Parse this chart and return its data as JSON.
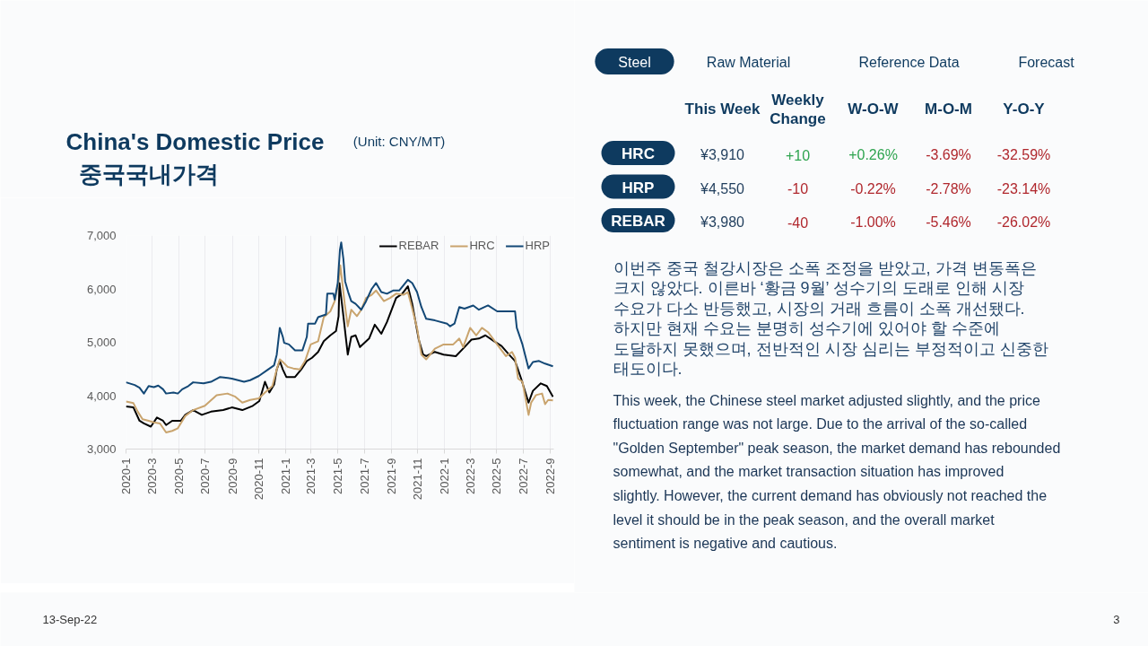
{
  "chart_data": [
    {
      "type": "line",
      "title": "China's Domestic Price",
      "subtitle": "(Unit: CNY/MT)",
      "annotations": [
        "중국국내가격"
      ],
      "xlim": [
        "2020-01-01",
        "2022-09-09"
      ],
      "xticks": [
        {
          "value": "2020-01",
          "label": "2020-1"
        },
        {
          "value": "2020-03",
          "label": "2020-3"
        },
        {
          "value": "2020-05",
          "label": "2020-5"
        },
        {
          "value": "2020-07",
          "label": "2020-7"
        },
        {
          "value": "2020-09",
          "label": "2020-9"
        },
        {
          "value": "2020-11",
          "label": "2020-11"
        },
        {
          "value": "2021-01",
          "label": "2021-1"
        },
        {
          "value": "2021-03",
          "label": "2021-3"
        },
        {
          "value": "2021-05",
          "label": "2021-5"
        },
        {
          "value": "2021-07",
          "label": "2021-7"
        },
        {
          "value": "2021-09",
          "label": "2021-9"
        },
        {
          "value": "2021-11",
          "label": "2021-11"
        },
        {
          "value": "2022-01",
          "label": "2022-1"
        },
        {
          "value": "2022-03",
          "label": "2022-3"
        },
        {
          "value": "2022-05",
          "label": "2022-5"
        },
        {
          "value": "2022-07",
          "label": "2022-7"
        },
        {
          "value": "2022-09",
          "label": "2022-9"
        }
      ],
      "ylim": [
        3000,
        7000
      ],
      "yticks": [
        {
          "value": 3000,
          "label": "3,000"
        },
        {
          "value": 4000,
          "label": "4,000"
        },
        {
          "value": 5000,
          "label": "5,000"
        },
        {
          "value": 6000,
          "label": "6,000"
        },
        {
          "value": 7000,
          "label": "7,000"
        }
      ],
      "grid": "x",
      "legend": "top right",
      "series": [
        {
          "name": "REBAR",
          "color": "#000000",
          "x": [
            "2020-01-01",
            "2020-01-18",
            "2020-02-01",
            "2020-02-11",
            "2020-02-27",
            "2020-03-12",
            "2020-03-26",
            "2020-04-02",
            "2020-04-16",
            "2020-05-06",
            "2020-05-16",
            "2020-06-03",
            "2020-06-23",
            "2020-07-14",
            "2020-08-11",
            "2020-08-31",
            "2020-09-24",
            "2020-10-18",
            "2020-11-02",
            "2020-11-15",
            "2020-11-25",
            "2020-12-06",
            "2020-12-12",
            "2020-12-19",
            "2020-12-26",
            "2021-01-03",
            "2021-01-23",
            "2021-02-06",
            "2021-02-19",
            "2021-03-03",
            "2021-03-17",
            "2021-03-30",
            "2021-04-14",
            "2021-04-27",
            "2021-05-03",
            "2021-05-05",
            "2021-05-14",
            "2021-05-21",
            "2021-05-24",
            "2021-06-01",
            "2021-06-11",
            "2021-06-21",
            "2021-07-12",
            "2021-07-25",
            "2021-08-09",
            "2021-08-22",
            "2021-09-12",
            "2021-09-26",
            "2021-10-09",
            "2021-10-19",
            "2021-11-03",
            "2021-11-13",
            "2021-11-20",
            "2021-12-10",
            "2021-12-30",
            "2022-01-27",
            "2022-02-16",
            "2022-03-04",
            "2022-03-21",
            "2022-04-05",
            "2022-04-25",
            "2022-05-12",
            "2022-05-29",
            "2022-06-12",
            "2022-06-26",
            "2022-07-13",
            "2022-07-23",
            "2022-08-10",
            "2022-08-24",
            "2022-09-07"
          ],
          "values": [
            3800,
            3780,
            3530,
            3480,
            3420,
            3590,
            3530,
            3450,
            3530,
            3530,
            3640,
            3730,
            3640,
            3700,
            3730,
            3780,
            3730,
            3810,
            3900,
            4260,
            4060,
            4210,
            4490,
            4650,
            4490,
            4350,
            4350,
            4490,
            4650,
            4710,
            4820,
            5020,
            5130,
            5210,
            5490,
            6110,
            5490,
            4990,
            4770,
            5100,
            5130,
            4910,
            5070,
            5330,
            5160,
            5380,
            5830,
            5910,
            6050,
            5720,
            5050,
            4770,
            4740,
            4820,
            4770,
            4740,
            4910,
            5050,
            5070,
            5130,
            5020,
            4930,
            4770,
            4650,
            4320,
            3870,
            4090,
            4230,
            4180,
            3980
          ]
        },
        {
          "name": "HRC",
          "color": "#c9a46e",
          "x": [
            "2020-01-01",
            "2020-01-18",
            "2020-01-28",
            "2020-02-08",
            "2020-02-22",
            "2020-03-05",
            "2020-03-19",
            "2020-04-02",
            "2020-04-16",
            "2020-04-29",
            "2020-05-16",
            "2020-06-03",
            "2020-06-30",
            "2020-07-27",
            "2020-08-21",
            "2020-09-08",
            "2020-09-24",
            "2020-10-12",
            "2020-11-01",
            "2020-11-15",
            "2020-12-02",
            "2020-12-12",
            "2020-12-19",
            "2020-12-26",
            "2021-01-06",
            "2021-01-19",
            "2021-02-03",
            "2021-02-15",
            "2021-02-28",
            "2021-03-17",
            "2021-03-30",
            "2021-04-14",
            "2021-04-24",
            "2021-05-04",
            "2021-05-07",
            "2021-05-17",
            "2021-05-24",
            "2021-06-01",
            "2021-06-14",
            "2021-06-24",
            "2021-07-05",
            "2021-07-18",
            "2021-07-28",
            "2021-08-15",
            "2021-08-29",
            "2021-09-12",
            "2021-09-29",
            "2021-10-09",
            "2021-10-19",
            "2021-10-30",
            "2021-11-09",
            "2021-11-20",
            "2021-12-10",
            "2021-12-30",
            "2022-01-21",
            "2022-02-04",
            "2022-02-13",
            "2022-03-01",
            "2022-03-15",
            "2022-03-28",
            "2022-04-11",
            "2022-05-02",
            "2022-05-22",
            "2022-06-05",
            "2022-06-12",
            "2022-06-19",
            "2022-06-29",
            "2022-07-13",
            "2022-07-19",
            "2022-07-30",
            "2022-08-13",
            "2022-08-20",
            "2022-08-27",
            "2022-09-07"
          ],
          "values": [
            3890,
            3860,
            3700,
            3560,
            3530,
            3500,
            3480,
            3310,
            3340,
            3390,
            3620,
            3730,
            3810,
            4010,
            4040,
            3980,
            3870,
            3920,
            3950,
            4060,
            4180,
            4490,
            4680,
            4630,
            4540,
            4510,
            4490,
            4650,
            4960,
            5020,
            5470,
            5580,
            5770,
            6190,
            6440,
            5720,
            5300,
            5610,
            5490,
            5610,
            5830,
            5890,
            5970,
            5770,
            5830,
            5910,
            5890,
            5940,
            5630,
            5270,
            4770,
            4680,
            4880,
            4960,
            4960,
            5070,
            4910,
            5270,
            5130,
            5270,
            5190,
            4960,
            4740,
            4820,
            4710,
            4320,
            4260,
            3640,
            3870,
            4010,
            4040,
            3840,
            3920,
            3910
          ]
        },
        {
          "name": "HRP",
          "color": "#134876",
          "x": [
            "2020-01-01",
            "2020-01-21",
            "2020-02-01",
            "2020-02-11",
            "2020-02-22",
            "2020-03-05",
            "2020-03-15",
            "2020-03-26",
            "2020-04-02",
            "2020-04-19",
            "2020-04-29",
            "2020-05-09",
            "2020-05-23",
            "2020-06-03",
            "2020-06-27",
            "2020-07-14",
            "2020-08-04",
            "2020-08-31",
            "2020-09-28",
            "2020-10-12",
            "2020-11-01",
            "2020-11-22",
            "2020-12-06",
            "2020-12-12",
            "2020-12-19",
            "2020-12-26",
            "2020-12-29",
            "2021-01-09",
            "2021-01-23",
            "2021-02-09",
            "2021-02-19",
            "2021-02-22",
            "2021-03-10",
            "2021-03-17",
            "2021-04-04",
            "2021-04-07",
            "2021-04-21",
            "2021-04-24",
            "2021-05-01",
            "2021-05-06",
            "2021-05-09",
            "2021-05-14",
            "2021-05-18",
            "2021-05-25",
            "2021-06-01",
            "2021-06-11",
            "2021-06-24",
            "2021-07-05",
            "2021-07-18",
            "2021-07-28",
            "2021-08-09",
            "2021-08-22",
            "2021-09-05",
            "2021-09-19",
            "2021-10-09",
            "2021-10-19",
            "2021-10-30",
            "2021-11-09",
            "2021-11-20",
            "2021-12-10",
            "2022-01-07",
            "2022-01-14",
            "2022-01-24",
            "2022-02-04",
            "2022-02-16",
            "2022-03-08",
            "2022-03-21",
            "2022-04-11",
            "2022-05-02",
            "2022-06-12",
            "2022-06-16",
            "2022-06-29",
            "2022-07-13",
            "2022-07-23",
            "2022-08-06",
            "2022-08-20",
            "2022-09-07"
          ],
          "values": [
            4250,
            4200,
            4150,
            4040,
            4180,
            4160,
            4190,
            4120,
            4040,
            4060,
            4040,
            4120,
            4180,
            4250,
            4230,
            4260,
            4350,
            4320,
            4260,
            4290,
            4370,
            4490,
            4570,
            4770,
            5270,
            5100,
            4990,
            4960,
            4850,
            4850,
            5100,
            5350,
            5350,
            5470,
            5520,
            5910,
            5910,
            5800,
            6110,
            6730,
            6870,
            6560,
            6140,
            5940,
            5770,
            5720,
            5610,
            5770,
            6000,
            6110,
            5940,
            5910,
            5970,
            5970,
            6170,
            6110,
            5940,
            5660,
            5440,
            5410,
            5350,
            5300,
            5350,
            5660,
            5630,
            5690,
            5610,
            5690,
            5580,
            5580,
            5270,
            4960,
            4510,
            4630,
            4650,
            4600,
            4550
          ]
        }
      ]
    },
    {
      "type": "other",
      "categories": [
        "Steel",
        "Raw Material",
        "Reference Data",
        "Forecast"
      ],
      "colors": [
        "#0e3a5f",
        null,
        null,
        null
      ]
    },
    {
      "type": "other",
      "categories": [
        "This Week",
        "Weekly Change",
        "W-O-W",
        "M-O-M",
        "Y-O-Y"
      ],
      "y_categories": [
        "HRC",
        "HRP",
        "REBAR"
      ],
      "cell_labels": [
        [
          "¥3,910",
          "+10",
          "+0.26%",
          "-3.69%",
          "-32.59%"
        ],
        [
          "¥4,550",
          "-10",
          "-0.22%",
          "-2.78%",
          "-23.14%"
        ],
        [
          "¥3,980",
          "-40",
          "-1.00%",
          "-5.46%",
          "-26.02%"
        ]
      ],
      "colors": [
        [
          "#1f3d5c",
          "#2ea44f",
          "#2ea44f",
          "#b0272d",
          "#b0272d"
        ],
        [
          "#1f3d5c",
          "#b0272d",
          "#b0272d",
          "#b0272d",
          "#b0272d"
        ],
        [
          "#1f3d5c",
          "#b0272d",
          "#b0272d",
          "#b0272d",
          "#b0272d"
        ]
      ]
    },
    {
      "type": "other",
      "annotations": [
        "이번주 중국 철강시장은 소폭 조정을 받았고, 가격 변동폭은 크지 않았다. 이른바 ‘황금 9월’ 성수기의 도래로 인해 시장 수요가 다소 반등했고, 시장의 거래 흐름이 소폭 개선됐다. 하지만 현재 수요는 분명히 성수기에 있어야 할 수준에 도달하지 못했으며, 전반적인 시장 심리는 부정적이고 신중한 태도이다.",
        "This week, the Chinese steel market adjusted slightly, and the price fluctuation range was not large. Due to the arrival of the so-called \"Golden September\" peak season, the market demand has rebounded somewhat, and the market transaction situation has improved slightly. However, the current demand has obviously not reached the level it should be in the peak season, and the overall market sentiment is negative and cautious."
      ]
    },
    {
      "type": "other",
      "annotations": [
        "13-Sep-22",
        "3"
      ]
    }
  ]
}
